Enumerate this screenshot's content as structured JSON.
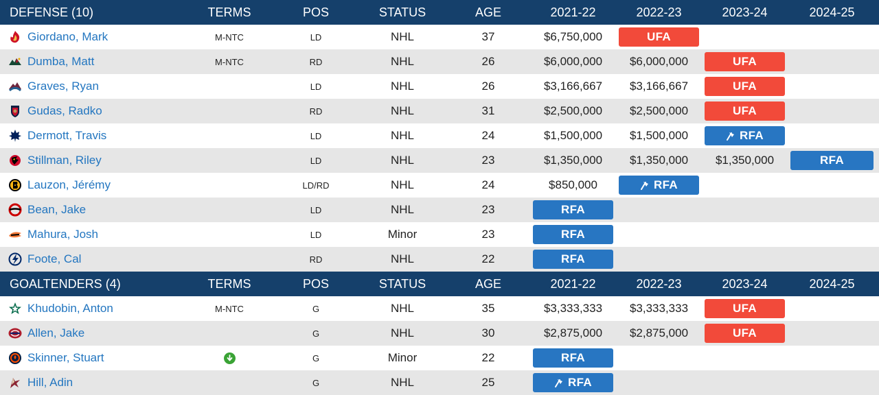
{
  "headers": {
    "defense": {
      "title": "DEFENSE (10)",
      "terms": "TERMS",
      "pos": "POS",
      "status": "STATUS",
      "age": "AGE",
      "y1": "2021-22",
      "y2": "2022-23",
      "y3": "2023-24",
      "y4": "2024-25"
    },
    "goalies": {
      "title": "GOALTENDERS (4)",
      "terms": "TERMS",
      "pos": "POS",
      "status": "STATUS",
      "age": "AGE",
      "y1": "2021-22",
      "y2": "2022-23",
      "y3": "2023-24",
      "y4": "2024-25"
    }
  },
  "colors": {
    "header_bg": "#15406b",
    "link": "#2376c0",
    "ufa": "#f24a3a",
    "rfa": "#2876c2"
  },
  "defense": [
    {
      "logo": "flames-logo-icon",
      "name": "Giordano, Mark",
      "terms": "M-NTC",
      "pos": "LD",
      "status": "NHL",
      "age": "37",
      "years": [
        {
          "v": "$6,750,000"
        },
        {
          "badge": "UFA"
        },
        {},
        {}
      ]
    },
    {
      "logo": "wild-logo-icon",
      "name": "Dumba, Matt",
      "terms": "M-NTC",
      "pos": "RD",
      "status": "NHL",
      "age": "26",
      "years": [
        {
          "v": "$6,000,000"
        },
        {
          "v": "$6,000,000"
        },
        {
          "badge": "UFA"
        },
        {}
      ]
    },
    {
      "logo": "avalanche-logo-icon",
      "name": "Graves, Ryan",
      "terms": "",
      "pos": "LD",
      "status": "NHL",
      "age": "26",
      "years": [
        {
          "v": "$3,166,667"
        },
        {
          "v": "$3,166,667"
        },
        {
          "badge": "UFA"
        },
        {}
      ]
    },
    {
      "logo": "panthers-logo-icon",
      "name": "Gudas, Radko",
      "terms": "",
      "pos": "RD",
      "status": "NHL",
      "age": "31",
      "years": [
        {
          "v": "$2,500,000"
        },
        {
          "v": "$2,500,000"
        },
        {
          "badge": "UFA"
        },
        {}
      ]
    },
    {
      "logo": "maple-leafs-logo-icon",
      "name": "Dermott, Travis",
      "terms": "",
      "pos": "LD",
      "status": "NHL",
      "age": "24",
      "years": [
        {
          "v": "$1,500,000"
        },
        {
          "v": "$1,500,000"
        },
        {
          "badge": "RFA",
          "flag": true
        },
        {}
      ]
    },
    {
      "logo": "blackhawks-logo-icon",
      "name": "Stillman, Riley",
      "terms": "",
      "pos": "LD",
      "status": "NHL",
      "age": "23",
      "years": [
        {
          "v": "$1,350,000"
        },
        {
          "v": "$1,350,000"
        },
        {
          "v": "$1,350,000"
        },
        {
          "badge": "RFA"
        }
      ]
    },
    {
      "logo": "bruins-logo-icon",
      "name": "Lauzon, Jérémy",
      "terms": "",
      "pos": "LD/RD",
      "status": "NHL",
      "age": "24",
      "years": [
        {
          "v": "$850,000"
        },
        {
          "badge": "RFA",
          "flag": true
        },
        {},
        {}
      ]
    },
    {
      "logo": "hurricanes-logo-icon",
      "name": "Bean, Jake",
      "terms": "",
      "pos": "LD",
      "status": "NHL",
      "age": "23",
      "years": [
        {
          "badge": "RFA"
        },
        {},
        {},
        {}
      ]
    },
    {
      "logo": "ducks-logo-icon",
      "name": "Mahura, Josh",
      "terms": "",
      "pos": "LD",
      "status": "Minor",
      "age": "23",
      "years": [
        {
          "badge": "RFA"
        },
        {},
        {},
        {}
      ]
    },
    {
      "logo": "lightning-logo-icon",
      "name": "Foote, Cal",
      "terms": "",
      "pos": "RD",
      "status": "NHL",
      "age": "22",
      "years": [
        {
          "badge": "RFA"
        },
        {},
        {},
        {}
      ]
    }
  ],
  "goalies": [
    {
      "logo": "stars-logo-icon",
      "name": "Khudobin, Anton",
      "terms": "M-NTC",
      "pos": "G",
      "status": "NHL",
      "age": "35",
      "years": [
        {
          "v": "$3,333,333"
        },
        {
          "v": "$3,333,333"
        },
        {
          "badge": "UFA"
        },
        {}
      ]
    },
    {
      "logo": "canadiens-logo-icon",
      "name": "Allen, Jake",
      "terms": "",
      "pos": "G",
      "status": "NHL",
      "age": "30",
      "years": [
        {
          "v": "$2,875,000"
        },
        {
          "v": "$2,875,000"
        },
        {
          "badge": "UFA"
        },
        {}
      ]
    },
    {
      "logo": "oilers-logo-icon",
      "name": "Skinner, Stuart",
      "terms_icon": "download-arrow-icon",
      "terms": "",
      "pos": "G",
      "status": "Minor",
      "age": "22",
      "years": [
        {
          "badge": "RFA"
        },
        {},
        {},
        {}
      ]
    },
    {
      "logo": "coyotes-logo-icon",
      "name": "Hill, Adin",
      "terms": "",
      "pos": "G",
      "status": "NHL",
      "age": "25",
      "years": [
        {
          "badge": "RFA",
          "flag": true
        },
        {},
        {},
        {}
      ]
    }
  ]
}
